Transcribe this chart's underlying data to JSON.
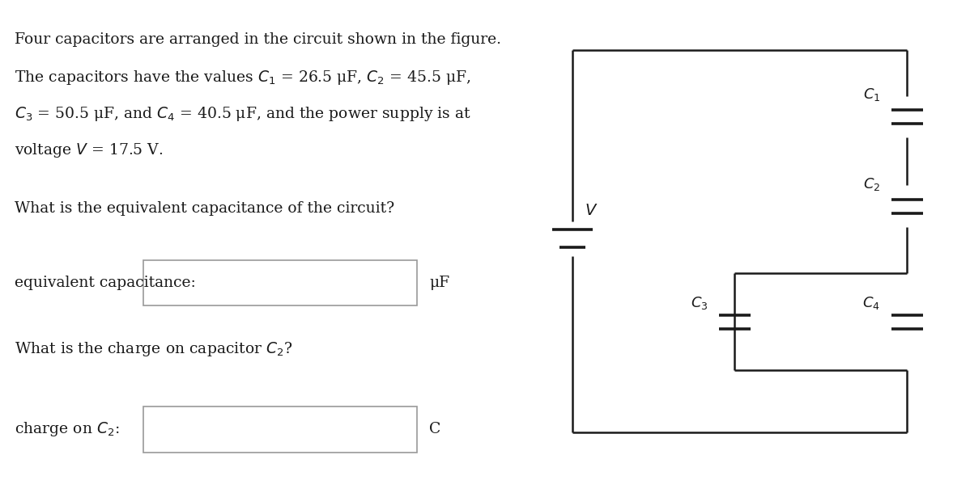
{
  "bg_color": "#ffffff",
  "text_color": "#1a1a1a",
  "line_color": "#1a1a1a",
  "line_width": 1.8,
  "text_lines": [
    "Four capacitors are arranged in the circuit shown in the figure.",
    "The capacitors have the values $C_1$ = 26.5 μF, $C_2$ = 45.5 μF,",
    "$C_3$ = 50.5 μF, and $C_4$ = 40.5 μF, and the power supply is at",
    "voltage $V$ = 17.5 V."
  ],
  "q1": "What is the equivalent capacitance of the circuit?",
  "label1": "equivalent capacitance:",
  "unit1": "μF",
  "q2": "What is the charge on capacitor $C_2$?",
  "label2": "charge on $C_2$:",
  "unit2": "C",
  "font_size": 13.5,
  "cap_label_fs": 13
}
